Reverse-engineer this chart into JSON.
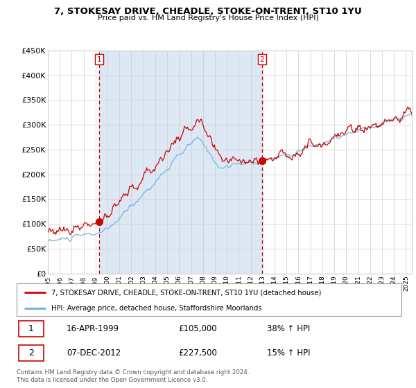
{
  "title": "7, STOKESAY DRIVE, CHEADLE, STOKE-ON-TRENT, ST10 1YU",
  "subtitle": "Price paid vs. HM Land Registry's House Price Index (HPI)",
  "legend_line1": "7, STOKESAY DRIVE, CHEADLE, STOKE-ON-TRENT, ST10 1YU (detached house)",
  "legend_line2": "HPI: Average price, detached house, Staffordshire Moorlands",
  "annotation1": {
    "label": "1",
    "date_str": "16-APR-1999",
    "price_str": "£105,000",
    "pct_str": "38% ↑ HPI"
  },
  "annotation2": {
    "label": "2",
    "date_str": "07-DEC-2012",
    "price_str": "£227,500",
    "pct_str": "15% ↑ HPI"
  },
  "purchase1_year": 1999.29,
  "purchase1_value": 105000,
  "purchase2_year": 2012.93,
  "purchase2_value": 227500,
  "hpi_color": "#6baed6",
  "price_color": "#cc0000",
  "bg_color": "#dce9f5",
  "grid_color": "#cccccc",
  "ylim": [
    0,
    450000
  ],
  "yticks": [
    0,
    50000,
    100000,
    150000,
    200000,
    250000,
    300000,
    350000,
    400000,
    450000
  ],
  "ytick_labels": [
    "£0",
    "£50K",
    "£100K",
    "£150K",
    "£200K",
    "£250K",
    "£300K",
    "£350K",
    "£400K",
    "£450K"
  ],
  "xmin": 1995.0,
  "xmax": 2025.5,
  "footer": "Contains HM Land Registry data © Crown copyright and database right 2024.\nThis data is licensed under the Open Government Licence v3.0."
}
